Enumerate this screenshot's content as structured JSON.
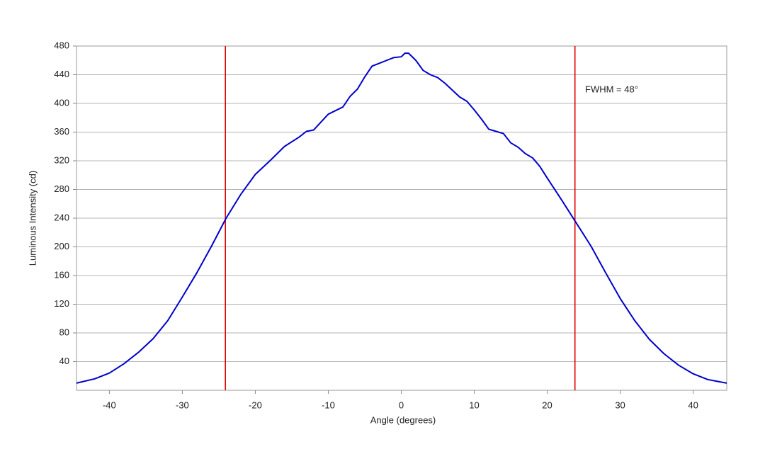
{
  "chart_data": {
    "type": "line",
    "x_label": "Angle (degrees)",
    "y_label": "Luminous Intensity (cd)",
    "annotation": "FWHM = 48°",
    "xlim": [
      -44.5,
      44.6
    ],
    "ylim": [
      0,
      480
    ],
    "xticks": [
      -40,
      -30,
      -20,
      -10,
      0,
      10,
      20,
      30,
      40
    ],
    "yticks": [
      40,
      80,
      120,
      160,
      200,
      240,
      280,
      320,
      360,
      400,
      440,
      480
    ],
    "grid": true,
    "vlines": {
      "color": "#e00000",
      "values": [
        -24.1,
        23.8
      ]
    },
    "series": [
      {
        "color": "#0000cc",
        "x": [
          -44.5,
          -42,
          -40,
          -38,
          -36,
          -34,
          -32,
          -30,
          -28,
          -26,
          -24,
          -22,
          -20,
          -18,
          -16,
          -14,
          -13,
          -12,
          -10,
          -8,
          -7,
          -6,
          -5,
          -4,
          -3,
          -2,
          -1,
          0,
          0.5,
          1,
          2,
          3,
          4,
          5,
          6,
          8,
          9,
          10,
          11,
          12,
          13,
          14,
          15,
          16,
          17,
          18,
          19,
          20,
          22,
          24,
          26,
          28,
          30,
          32,
          34,
          36,
          38,
          40,
          42,
          44.6
        ],
        "values": [
          10,
          16,
          24,
          37,
          53,
          72,
          97,
          130,
          164,
          201,
          240,
          273,
          301,
          320,
          340,
          353,
          361,
          363,
          385,
          395,
          410,
          420,
          437,
          452,
          456,
          460,
          464,
          465,
          470,
          470,
          460,
          446,
          440,
          436,
          428,
          409,
          403,
          391,
          378,
          364,
          361,
          358,
          345,
          339,
          330,
          324,
          312,
          296,
          265,
          233,
          201,
          164,
          128,
          97,
          71,
          51,
          35,
          23,
          15,
          10
        ]
      }
    ]
  }
}
